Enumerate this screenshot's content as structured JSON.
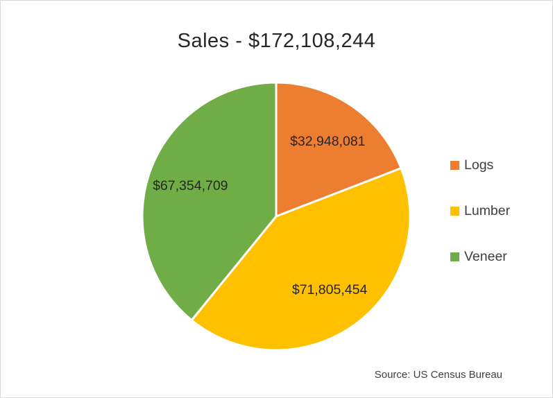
{
  "chart_data": {
    "type": "pie",
    "title": "Sales - $172,108,244",
    "total": 172108244,
    "slices": [
      {
        "label": "Logs",
        "value": 32948081,
        "formatted": "$32,948,081",
        "color": "#ED7D31"
      },
      {
        "label": "Lumber",
        "value": 71805454,
        "formatted": "$71,805,454",
        "color": "#FFC000"
      },
      {
        "label": "Veneer",
        "value": 67354709,
        "formatted": "$67,354,709",
        "color": "#70AD47"
      }
    ],
    "start_angle_deg": 0,
    "direction": "clockwise",
    "legend_position": "right",
    "data_labels": "value",
    "source": "Source: US Census Bureau"
  },
  "colors": {
    "background": "#FFFFFF",
    "border": "#D9D9D9",
    "title_text": "#262626",
    "data_label_text": "#262626",
    "legend_text": "#404040",
    "source_text": "#404040",
    "slice_separator": "#FFFFFF"
  }
}
